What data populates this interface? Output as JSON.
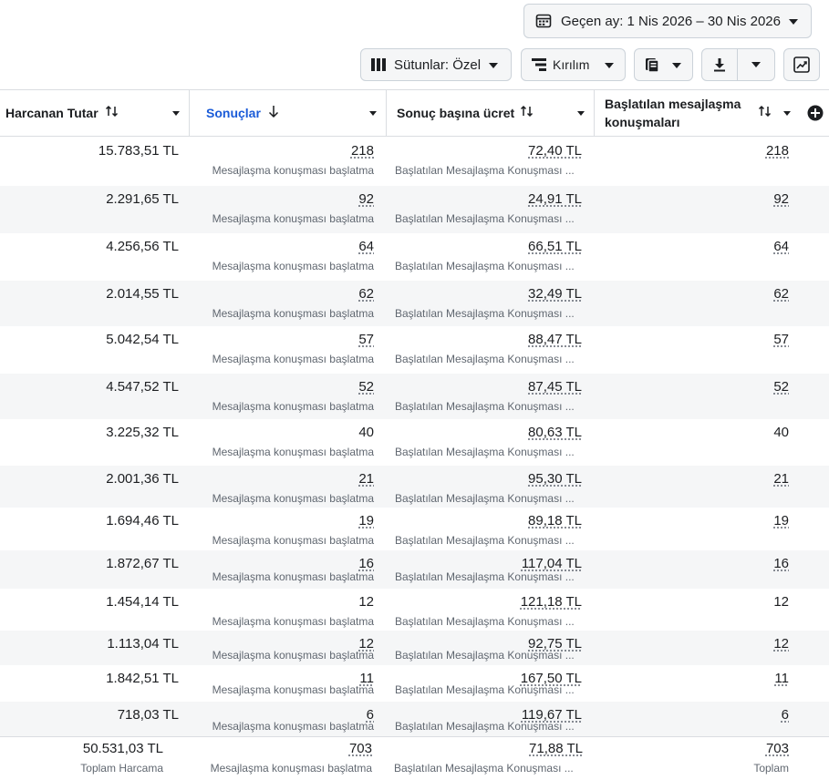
{
  "toolbar": {
    "date_range": "Geçen ay: 1 Nis 2026 – 30 Nis 2026",
    "columns": "Sütunlar: Özel",
    "breakdown": "Kırılım",
    "icons": [
      "calendar-icon",
      "columns-icon",
      "breakdown-icon",
      "reports-icon",
      "download-icon",
      "chart-icon"
    ]
  },
  "table": {
    "headers": {
      "spend": "Harcanan Tutar",
      "results": "Sonuçlar",
      "cpr": "Sonuç başına ücret",
      "conv_line1": "Başlatılan mesajlaşma",
      "conv_line2": "konuşmaları"
    },
    "rows": [
      {
        "spend": "15.783,51 TL",
        "results": "218",
        "result_type": "Mesajlaşma konuşması başlatma",
        "cpr": "72,40 TL",
        "cpr_type": "Başlatılan Mesajlaşma Konuşması ...",
        "conv": "218"
      },
      {
        "spend": "2.291,65 TL",
        "results": "92",
        "result_type": "Mesajlaşma konuşması başlatma",
        "cpr": "24,91 TL",
        "cpr_type": "Başlatılan Mesajlaşma Konuşması ...",
        "conv": "92"
      },
      {
        "spend": "4.256,56 TL",
        "results": "64",
        "result_type": "Mesajlaşma konuşması başlatma",
        "cpr": "66,51 TL",
        "cpr_type": "Başlatılan Mesajlaşma Konuşması ...",
        "conv": "64"
      },
      {
        "spend": "2.014,55 TL",
        "results": "62",
        "result_type": "Mesajlaşma konuşması başlatma",
        "cpr": "32,49 TL",
        "cpr_type": "Başlatılan Mesajlaşma Konuşması ...",
        "conv": "62"
      },
      {
        "spend": "5.042,54 TL",
        "results": "57",
        "result_type": "Mesajlaşma konuşması başlatma",
        "cpr": "88,47 TL",
        "cpr_type": "Başlatılan Mesajlaşma Konuşması ...",
        "conv": "57"
      },
      {
        "spend": "4.547,52 TL",
        "results": "52",
        "result_type": "Mesajlaşma konuşması başlatma",
        "cpr": "87,45 TL",
        "cpr_type": "Başlatılan Mesajlaşma Konuşması ...",
        "conv": "52"
      },
      {
        "spend": "3.225,32 TL",
        "results": "40",
        "result_type": "Mesajlaşma konuşması başlatma",
        "cpr": "80,63 TL",
        "cpr_type": "Başlatılan Mesajlaşma Konuşması ...",
        "conv": "40"
      },
      {
        "spend": "2.001,36 TL",
        "results": "21",
        "result_type": "Mesajlaşma konuşması başlatma",
        "cpr": "95,30 TL",
        "cpr_type": "Başlatılan Mesajlaşma Konuşması ...",
        "conv": "21"
      },
      {
        "spend": "1.694,46 TL",
        "results": "19",
        "result_type": "Mesajlaşma konuşması başlatma",
        "cpr": "89,18 TL",
        "cpr_type": "Başlatılan Mesajlaşma Konuşması ...",
        "conv": "19"
      },
      {
        "spend": "1.872,67 TL",
        "results": "16",
        "result_type": "Mesajlaşma konuşması başlatma",
        "cpr": "117,04 TL",
        "cpr_type": "Başlatılan Mesajlaşma Konuşması ...",
        "conv": "16"
      },
      {
        "spend": "1.454,14 TL",
        "results": "12",
        "result_type": "Mesajlaşma konuşması başlatma",
        "cpr": "121,18 TL",
        "cpr_type": "Başlatılan Mesajlaşma Konuşması ...",
        "conv": "12"
      },
      {
        "spend": "1.113,04 TL",
        "results": "12",
        "result_type": "Mesajlaşma konuşması başlatma",
        "cpr": "92,75 TL",
        "cpr_type": "Başlatılan Mesajlaşma Konuşması ...",
        "conv": "12"
      },
      {
        "spend": "1.842,51 TL",
        "results": "11",
        "result_type": "Mesajlaşma konuşması başlatma",
        "cpr": "167,50 TL",
        "cpr_type": "Başlatılan Mesajlaşma Konuşması ...",
        "conv": "11"
      },
      {
        "spend": "718,03 TL",
        "results": "6",
        "result_type": "Mesajlaşma konuşması başlatma",
        "cpr": "119,67 TL",
        "cpr_type": "Başlatılan Mesajlaşma Konuşması ...",
        "conv": "6"
      }
    ],
    "totals": {
      "spend": "50.531,03 TL",
      "spend_label": "Toplam Harcama",
      "results": "703",
      "results_label": "Mesajlaşma konuşması başlatma",
      "cpr": "71,88 TL",
      "cpr_label": "Başlatılan Mesajlaşma Konuşması ...",
      "conv": "703",
      "conv_label": "Toplam"
    }
  }
}
